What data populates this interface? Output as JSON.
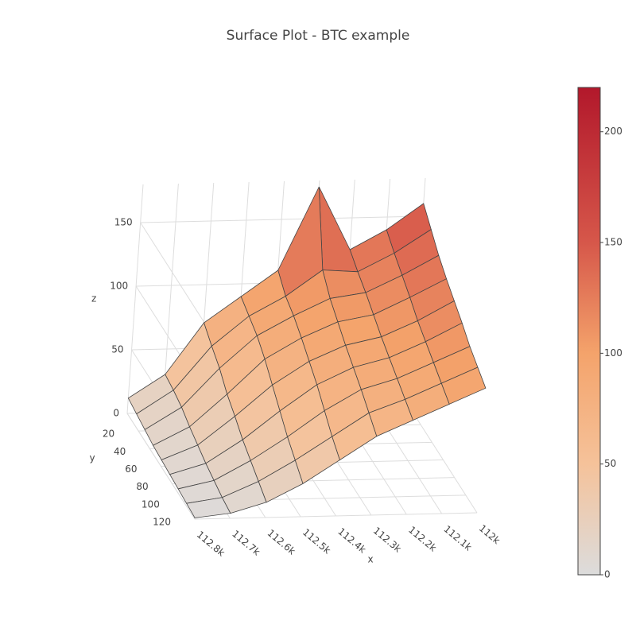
{
  "chart_data": {
    "type": "surface",
    "title": "Surface Plot - BTC example",
    "x_label": "x",
    "y_label": "y",
    "z_label": "z",
    "x": [
      112000,
      112100,
      112200,
      112300,
      112400,
      112500,
      112600,
      112700,
      112800
    ],
    "y": [
      0,
      15,
      30,
      45,
      60,
      75,
      90,
      105,
      120
    ],
    "z": [
      [
        160,
        140,
        125,
        175,
        110,
        90,
        70,
        30,
        12
      ],
      [
        150,
        132,
        118,
        120,
        100,
        85,
        62,
        28,
        10
      ],
      [
        140,
        125,
        112,
        108,
        95,
        80,
        55,
        25,
        8
      ],
      [
        132,
        118,
        105,
        100,
        88,
        72,
        45,
        20,
        6
      ],
      [
        125,
        110,
        98,
        92,
        80,
        62,
        38,
        16,
        5
      ],
      [
        118,
        104,
        92,
        85,
        72,
        52,
        30,
        12,
        4
      ],
      [
        110,
        98,
        86,
        78,
        62,
        42,
        24,
        9,
        3
      ],
      [
        104,
        92,
        80,
        70,
        52,
        34,
        18,
        6,
        2
      ],
      [
        98,
        86,
        74,
        62,
        44,
        26,
        12,
        4,
        1
      ]
    ],
    "xlim": [
      112000,
      112800
    ],
    "xticks": [
      {
        "value": 112000,
        "label": "112k"
      },
      {
        "value": 112100,
        "label": "112.1k"
      },
      {
        "value": 112200,
        "label": "112.2k"
      },
      {
        "value": 112300,
        "label": "112.3k"
      },
      {
        "value": 112400,
        "label": "112.4k"
      },
      {
        "value": 112500,
        "label": "112.5k"
      },
      {
        "value": 112600,
        "label": "112.6k"
      },
      {
        "value": 112700,
        "label": "112.7k"
      },
      {
        "value": 112800,
        "label": "112.8k"
      }
    ],
    "ylim": [
      0,
      120
    ],
    "yticks": [
      20,
      40,
      60,
      80,
      100,
      120
    ],
    "zlim": [
      0,
      180
    ],
    "zticks": [
      0,
      50,
      100,
      150
    ],
    "colorbar_lim": [
      0,
      220
    ],
    "colorbar_ticks": [
      0,
      50,
      100,
      150,
      200
    ],
    "colorscale": [
      [
        0,
        "#dcdcdc"
      ],
      [
        50,
        "#f5c29a"
      ],
      [
        100,
        "#f4a36b"
      ],
      [
        150,
        "#d6574a"
      ],
      [
        220,
        "#b2182b"
      ]
    ],
    "grid": true
  }
}
